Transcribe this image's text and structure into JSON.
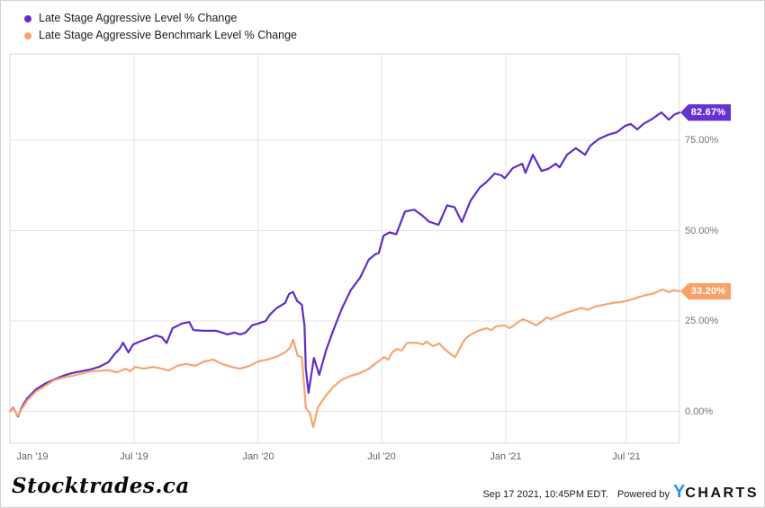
{
  "chart_data": {
    "type": "line",
    "title": "",
    "grid": true,
    "legend_position": "top-left",
    "x_axis": {
      "range_note": "Jan 2019 to Sep 17 2021, t is fraction of full span",
      "ticks": [
        {
          "label": "Jan '19",
          "t": 0.0
        },
        {
          "label": "Jul '19",
          "t": 0.1855
        },
        {
          "label": "Jan '20",
          "t": 0.371
        },
        {
          "label": "Jul '20",
          "t": 0.5551
        },
        {
          "label": "Jan '21",
          "t": 0.7405
        },
        {
          "label": "Jul '21",
          "t": 0.9207
        }
      ]
    },
    "y_axis": {
      "unit": "%",
      "ylim": [
        -8.8,
        98.9
      ],
      "ticks": [
        {
          "label": "0.00%",
          "v": 0
        },
        {
          "label": "25.00%",
          "v": 25
        },
        {
          "label": "50.00%",
          "v": 50
        },
        {
          "label": "75.00%",
          "v": 75
        }
      ]
    },
    "series": [
      {
        "name": "Late Stage Aggressive Level % Change",
        "color": "#5f2ec6",
        "tag_color": "#6433d2",
        "end_label": "82.67%",
        "end_value": 82.67,
        "points": [
          [
            0,
            0
          ],
          [
            0.005,
            1
          ],
          [
            0.012,
            -1.4
          ],
          [
            0.019,
            1.5
          ],
          [
            0.026,
            3.6
          ],
          [
            0.039,
            6.1
          ],
          [
            0.052,
            7.6
          ],
          [
            0.066,
            8.8
          ],
          [
            0.079,
            9.8
          ],
          [
            0.093,
            10.6
          ],
          [
            0.106,
            11.1
          ],
          [
            0.12,
            11.6
          ],
          [
            0.133,
            12.3
          ],
          [
            0.147,
            13.6
          ],
          [
            0.157,
            16
          ],
          [
            0.164,
            17.3
          ],
          [
            0.169,
            19
          ],
          [
            0.177,
            16.3
          ],
          [
            0.184,
            18.5
          ],
          [
            0.194,
            19.3
          ],
          [
            0.204,
            20
          ],
          [
            0.218,
            21
          ],
          [
            0.227,
            20.5
          ],
          [
            0.234,
            18.9
          ],
          [
            0.243,
            23
          ],
          [
            0.257,
            24.3
          ],
          [
            0.268,
            24.7
          ],
          [
            0.274,
            22.5
          ],
          [
            0.288,
            22.3
          ],
          [
            0.308,
            22.3
          ],
          [
            0.317,
            21.8
          ],
          [
            0.325,
            21.3
          ],
          [
            0.335,
            21.8
          ],
          [
            0.344,
            21.3
          ],
          [
            0.352,
            21.8
          ],
          [
            0.362,
            23.8
          ],
          [
            0.371,
            24.3
          ],
          [
            0.382,
            25
          ],
          [
            0.388,
            26.7
          ],
          [
            0.398,
            28.5
          ],
          [
            0.411,
            30
          ],
          [
            0.417,
            32.5
          ],
          [
            0.423,
            33
          ],
          [
            0.429,
            30.5
          ],
          [
            0.436,
            29.5
          ],
          [
            0.44,
            23.5
          ],
          [
            0.442,
            11.8
          ],
          [
            0.446,
            5.1
          ],
          [
            0.454,
            14.8
          ],
          [
            0.462,
            10.1
          ],
          [
            0.472,
            16.8
          ],
          [
            0.483,
            22.5
          ],
          [
            0.496,
            28.5
          ],
          [
            0.509,
            33.5
          ],
          [
            0.523,
            37
          ],
          [
            0.536,
            42
          ],
          [
            0.546,
            43.5
          ],
          [
            0.551,
            43.8
          ],
          [
            0.558,
            48.6
          ],
          [
            0.567,
            49.5
          ],
          [
            0.577,
            49
          ],
          [
            0.59,
            55.3
          ],
          [
            0.604,
            55.8
          ],
          [
            0.617,
            54
          ],
          [
            0.626,
            52.5
          ],
          [
            0.64,
            51.6
          ],
          [
            0.653,
            57
          ],
          [
            0.664,
            56.5
          ],
          [
            0.675,
            52.4
          ],
          [
            0.688,
            58.3
          ],
          [
            0.702,
            62
          ],
          [
            0.711,
            63.3
          ],
          [
            0.724,
            65.8
          ],
          [
            0.734,
            65.3
          ],
          [
            0.739,
            64.5
          ],
          [
            0.751,
            67.3
          ],
          [
            0.765,
            68.5
          ],
          [
            0.77,
            66
          ],
          [
            0.781,
            71
          ],
          [
            0.794,
            66.5
          ],
          [
            0.805,
            67.2
          ],
          [
            0.815,
            68.5
          ],
          [
            0.821,
            67.5
          ],
          [
            0.832,
            71
          ],
          [
            0.845,
            72.8
          ],
          [
            0.859,
            71
          ],
          [
            0.867,
            73.5
          ],
          [
            0.879,
            75.3
          ],
          [
            0.893,
            76.5
          ],
          [
            0.906,
            77.2
          ],
          [
            0.919,
            79
          ],
          [
            0.927,
            79.5
          ],
          [
            0.937,
            78
          ],
          [
            0.946,
            79.5
          ],
          [
            0.96,
            81
          ],
          [
            0.973,
            82.7
          ],
          [
            0.984,
            80.7
          ],
          [
            0.993,
            82.2
          ],
          [
            1,
            82.67
          ]
        ]
      },
      {
        "name": "Late Stage Aggressive Benchmark Level % Change",
        "color": "#f8a470",
        "tag_color": "#f7a269",
        "end_label": "33.20%",
        "end_value": 33.2,
        "points": [
          [
            0,
            0
          ],
          [
            0.005,
            0.8
          ],
          [
            0.012,
            -1.2
          ],
          [
            0.019,
            1
          ],
          [
            0.026,
            3
          ],
          [
            0.039,
            5.5
          ],
          [
            0.052,
            7
          ],
          [
            0.066,
            8.6
          ],
          [
            0.079,
            9.3
          ],
          [
            0.093,
            9.8
          ],
          [
            0.106,
            10.4
          ],
          [
            0.12,
            11.1
          ],
          [
            0.133,
            11.2
          ],
          [
            0.147,
            11.4
          ],
          [
            0.16,
            10.8
          ],
          [
            0.173,
            11.8
          ],
          [
            0.18,
            11.1
          ],
          [
            0.187,
            12.3
          ],
          [
            0.2,
            11.8
          ],
          [
            0.214,
            12.3
          ],
          [
            0.227,
            11.8
          ],
          [
            0.237,
            11.3
          ],
          [
            0.25,
            12.6
          ],
          [
            0.263,
            13.1
          ],
          [
            0.277,
            12.6
          ],
          [
            0.29,
            13.8
          ],
          [
            0.304,
            14.3
          ],
          [
            0.317,
            13.1
          ],
          [
            0.331,
            12.3
          ],
          [
            0.344,
            11.8
          ],
          [
            0.358,
            12.6
          ],
          [
            0.371,
            13.8
          ],
          [
            0.384,
            14.3
          ],
          [
            0.398,
            15.1
          ],
          [
            0.411,
            16.3
          ],
          [
            0.418,
            17.5
          ],
          [
            0.423,
            19.8
          ],
          [
            0.43,
            15.3
          ],
          [
            0.436,
            15
          ],
          [
            0.442,
            1
          ],
          [
            0.448,
            -0.5
          ],
          [
            0.453,
            -4.4
          ],
          [
            0.46,
            1.1
          ],
          [
            0.472,
            4.4
          ],
          [
            0.483,
            6.8
          ],
          [
            0.496,
            8.8
          ],
          [
            0.509,
            9.8
          ],
          [
            0.523,
            10.6
          ],
          [
            0.536,
            11.8
          ],
          [
            0.55,
            13.8
          ],
          [
            0.559,
            15
          ],
          [
            0.565,
            14.3
          ],
          [
            0.571,
            16.3
          ],
          [
            0.578,
            17.3
          ],
          [
            0.585,
            16.8
          ],
          [
            0.593,
            18.9
          ],
          [
            0.606,
            19
          ],
          [
            0.617,
            18.5
          ],
          [
            0.622,
            19.3
          ],
          [
            0.632,
            18
          ],
          [
            0.641,
            18.8
          ],
          [
            0.649,
            17.3
          ],
          [
            0.657,
            16
          ],
          [
            0.665,
            15
          ],
          [
            0.672,
            17.5
          ],
          [
            0.679,
            19.8
          ],
          [
            0.686,
            21
          ],
          [
            0.699,
            22.3
          ],
          [
            0.712,
            23
          ],
          [
            0.719,
            22.5
          ],
          [
            0.726,
            23.5
          ],
          [
            0.739,
            23.8
          ],
          [
            0.746,
            23
          ],
          [
            0.753,
            23.8
          ],
          [
            0.759,
            24.7
          ],
          [
            0.766,
            25.5
          ],
          [
            0.773,
            25
          ],
          [
            0.786,
            23.8
          ],
          [
            0.793,
            24.7
          ],
          [
            0.802,
            26
          ],
          [
            0.808,
            25.5
          ],
          [
            0.816,
            26.2
          ],
          [
            0.829,
            27.2
          ],
          [
            0.843,
            28
          ],
          [
            0.854,
            28.6
          ],
          [
            0.863,
            28.1
          ],
          [
            0.874,
            29
          ],
          [
            0.887,
            29.5
          ],
          [
            0.901,
            30
          ],
          [
            0.914,
            30.3
          ],
          [
            0.922,
            30.6
          ],
          [
            0.934,
            31.3
          ],
          [
            0.948,
            32.1
          ],
          [
            0.961,
            32.6
          ],
          [
            0.975,
            33.7
          ],
          [
            0.984,
            33
          ],
          [
            0.992,
            33.5
          ],
          [
            1,
            33.2
          ]
        ]
      }
    ],
    "frame_color": "#d9d9d9",
    "grid_color": "#e4e4e4"
  },
  "footer": {
    "watermark": "Stocktrades.ca",
    "timestamp": "Sep 17 2021, 10:45PM EDT.",
    "powered_by": "Powered by",
    "brand_y": "Y",
    "brand_rest": "CHARTS",
    "brand_y_color": "#2196f3"
  }
}
